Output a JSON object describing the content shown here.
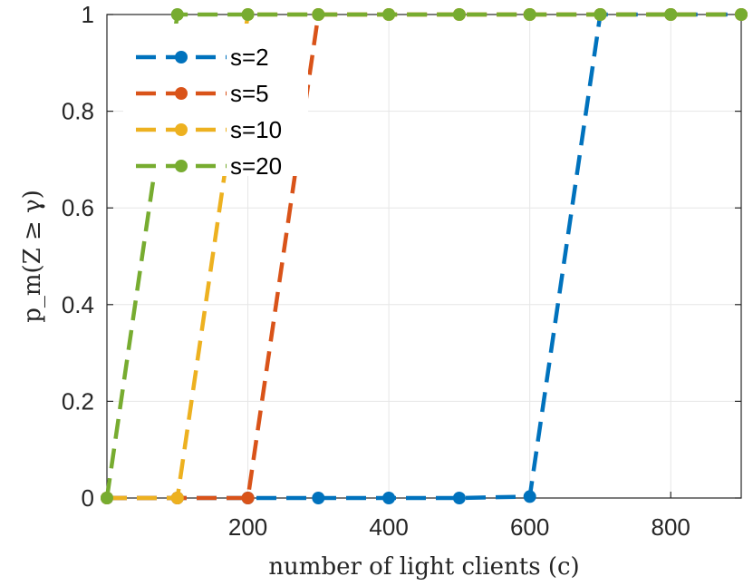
{
  "chart_data": {
    "type": "line",
    "xlabel": "number of light clients (c)",
    "ylabel": "p_m(Z ≥ γ)",
    "xlim": [
      0,
      900
    ],
    "ylim": [
      0,
      1
    ],
    "xticks": [
      200,
      400,
      600,
      800
    ],
    "xtick_labels": [
      "200",
      "400",
      "600",
      "800"
    ],
    "yticks": [
      0,
      0.2,
      0.4,
      0.6,
      0.8,
      1
    ],
    "ytick_labels": [
      "0",
      "0.2",
      "0.4",
      "0.6",
      "0.8",
      "1"
    ],
    "grid": true,
    "legend_position": "top-left",
    "line_style": "dashed",
    "marker": "circle",
    "x": [
      0,
      100,
      200,
      300,
      400,
      500,
      600,
      700,
      800,
      900
    ],
    "series": [
      {
        "name": "s=2",
        "color": "#0072BD",
        "values": [
          0,
          0,
          0,
          0,
          0,
          0,
          0.003,
          1,
          1,
          1
        ]
      },
      {
        "name": "s=5",
        "color": "#D95319",
        "values": [
          0,
          0,
          0,
          1,
          1,
          1,
          1,
          1,
          1,
          1
        ]
      },
      {
        "name": "s=10",
        "color": "#EDB120",
        "values": [
          0,
          0,
          1,
          1,
          1,
          1,
          1,
          1,
          1,
          1
        ]
      },
      {
        "name": "s=20",
        "color": "#77AC30",
        "values": [
          0,
          1,
          1,
          1,
          1,
          1,
          1,
          1,
          1,
          1
        ]
      }
    ]
  }
}
